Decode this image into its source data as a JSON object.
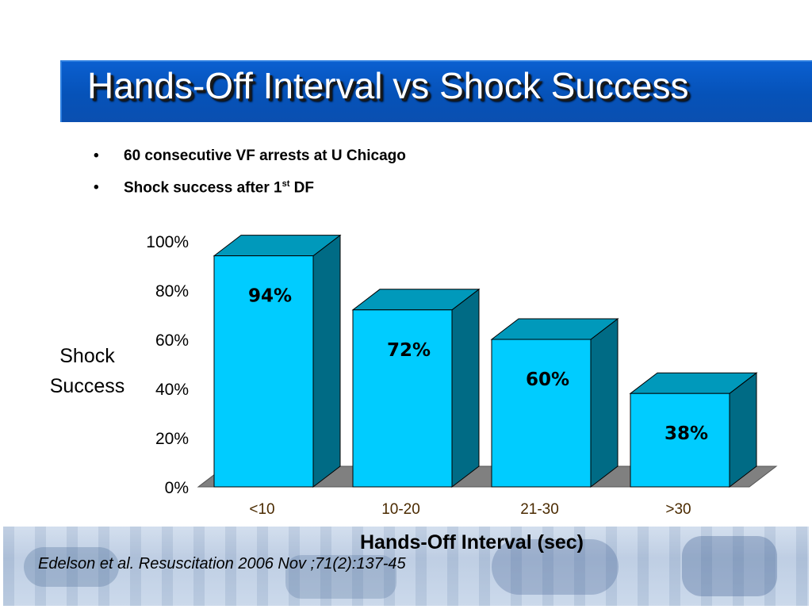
{
  "title": "Hands-Off Interval vs Shock Success",
  "bullets": [
    {
      "text": "60 consecutive VF arrests at U Chicago",
      "sup": ""
    },
    {
      "text": "Shock success after 1",
      "sup": "st",
      "after": " DF"
    }
  ],
  "bullet_glyph": "•",
  "citation": "Edelson et al. Resuscitation 2006 Nov ;71(2):137-45",
  "colors": {
    "title_bar": "#0652b8",
    "bar_front": "#00ccff",
    "bar_top": "#0099bb",
    "bar_side": "#006b85",
    "floor": "#808080",
    "tick_label_x": "#4a2a00"
  },
  "chart_data": {
    "type": "bar",
    "style": "3d",
    "categories": [
      "<10",
      "10-20",
      "21-30",
      ">30"
    ],
    "values": [
      94,
      72,
      60,
      38
    ],
    "data_labels": [
      "94%",
      "72%",
      "60%",
      "38%"
    ],
    "y_ticks": [
      "0%",
      "20%",
      "40%",
      "60%",
      "80%",
      "100%"
    ],
    "ylim": [
      0,
      100
    ],
    "ylabel": "Shock Success",
    "xlabel": "Hands-Off Interval (sec)",
    "grid": false,
    "legend": "none"
  }
}
